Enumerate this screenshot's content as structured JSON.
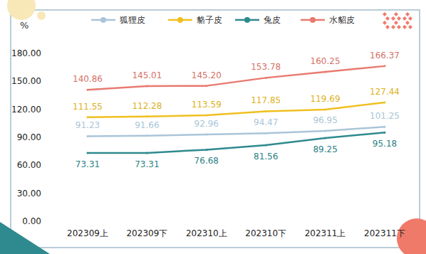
{
  "chart_data": {
    "type": "line",
    "ylabel": "%",
    "categories": [
      "202309上",
      "202309下",
      "202310上",
      "202310下",
      "202311上",
      "202311下"
    ],
    "series": [
      {
        "name": "狐狸皮",
        "color": "#aac5d8",
        "values": [
          91.23,
          91.66,
          92.96,
          94.47,
          96.95,
          101.25
        ],
        "value_labels": [
          "91.23",
          "91.66",
          "92.96",
          "94.47",
          "96.95",
          "101.25"
        ]
      },
      {
        "name": "貉子皮",
        "color": "#f0c020",
        "values": [
          111.55,
          112.28,
          113.59,
          117.85,
          119.69,
          127.44
        ],
        "value_labels": [
          "111.55",
          "112.28",
          "113.59",
          "117.85",
          "119.69",
          "127.44"
        ]
      },
      {
        "name": "兔皮",
        "color": "#2e8a8e",
        "values": [
          73.31,
          73.31,
          76.68,
          81.56,
          89.25,
          95.18
        ],
        "value_labels": [
          "73.31",
          "73.31",
          "76.68",
          "81.56",
          "89.25",
          "95.18"
        ]
      },
      {
        "name": "水貂皮",
        "color": "#e87a70",
        "values": [
          140.86,
          145.01,
          145.2,
          153.78,
          160.25,
          166.37
        ],
        "value_labels": [
          "140.86",
          "145.01",
          "145.20",
          "153.78",
          "160.25",
          "166.37"
        ]
      }
    ],
    "ylim": [
      0,
      180
    ],
    "yticks": [
      {
        "value": 0,
        "label": "0.00"
      },
      {
        "value": 30,
        "label": "30.00"
      },
      {
        "value": 60,
        "label": "60.00"
      },
      {
        "value": 90,
        "label": "90.00"
      },
      {
        "value": 120,
        "label": "120.00"
      },
      {
        "value": 150,
        "label": "150.00"
      },
      {
        "value": 180,
        "label": "180.00"
      }
    ],
    "grid": false,
    "data_labels": true,
    "legend": "top"
  }
}
